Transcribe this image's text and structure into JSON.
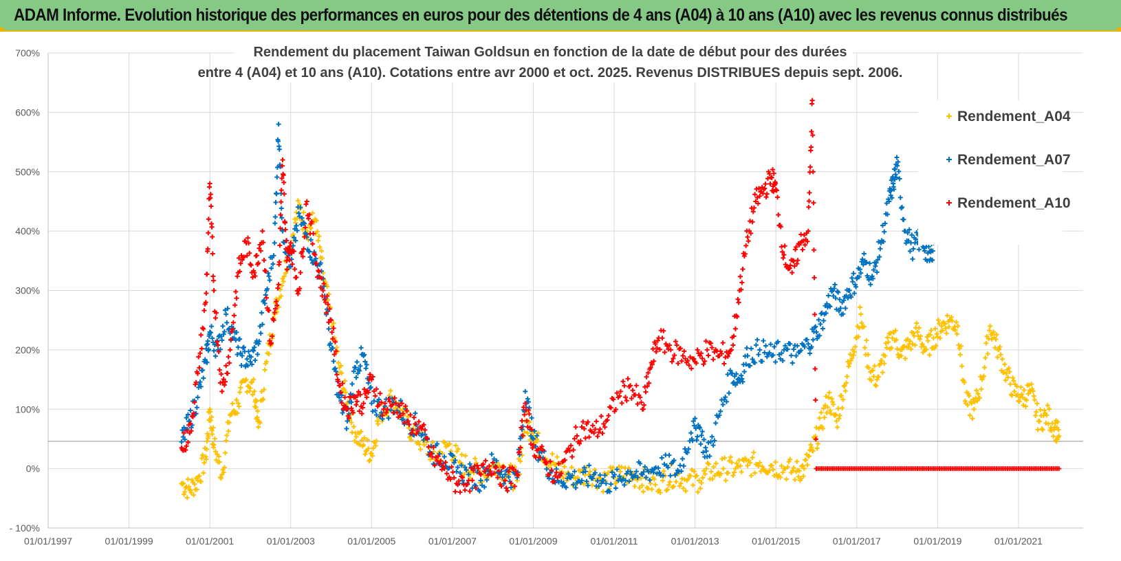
{
  "header": {
    "title": "ADAM Informe. Evolution historique des performances en euros pour des détentions de 4 ans (A04) à 10 ans (A10) avec les revenus connus distribués"
  },
  "colors": {
    "header_bg": "#86c987",
    "accent": "#e8b400",
    "A04": "#ffc000",
    "A07": "#0070c0",
    "A10": "#ff0000"
  },
  "chart_data": {
    "type": "scatter",
    "title_lines": [
      "Rendement du placement Taiwan Goldsun  en fonction de la date de début pour des durées",
      "entre 4 (A04) et 10 ans (A10). Cotations entre avr 2000 et oct. 2025. Revenus DISTRIBUES depuis sept. 2006."
    ],
    "y_ticks": [
      "700%",
      "600%",
      "500%",
      "400%",
      "300%",
      "200%",
      "100%",
      "0%",
      "- 100%"
    ],
    "y_range": [
      -100,
      700
    ],
    "x_ticks": [
      "01/01/1997",
      "01/01/1999",
      "01/01/2001",
      "01/01/2003",
      "01/01/2005",
      "01/01/2007",
      "01/01/2009",
      "01/01/2011",
      "01/01/2013",
      "01/01/2015",
      "01/01/2017",
      "01/01/2019",
      "01/01/2021"
    ],
    "x_range": [
      1997.0,
      2022.6
    ],
    "grid": "horizontal and vertical",
    "legend_position": "top-right",
    "series": [
      {
        "name": "Rendement_A04",
        "color": "#ffc000",
        "points": [
          [
            2000.3,
            -25
          ],
          [
            2000.5,
            -35
          ],
          [
            2000.7,
            -20
          ],
          [
            2000.9,
            20
          ],
          [
            2001.0,
            100
          ],
          [
            2001.1,
            40
          ],
          [
            2001.3,
            -10
          ],
          [
            2001.5,
            90
          ],
          [
            2001.7,
            110
          ],
          [
            2001.9,
            150
          ],
          [
            2002.1,
            130
          ],
          [
            2002.2,
            70
          ],
          [
            2002.4,
            180
          ],
          [
            2002.6,
            260
          ],
          [
            2002.8,
            320
          ],
          [
            2003.0,
            380
          ],
          [
            2003.2,
            440
          ],
          [
            2003.4,
            400
          ],
          [
            2003.6,
            420
          ],
          [
            2003.8,
            330
          ],
          [
            2004.0,
            250
          ],
          [
            2004.2,
            170
          ],
          [
            2004.4,
            110
          ],
          [
            2004.6,
            60
          ],
          [
            2004.8,
            40
          ],
          [
            2005.0,
            25
          ],
          [
            2005.2,
            90
          ],
          [
            2005.5,
            120
          ],
          [
            2005.8,
            90
          ],
          [
            2006.0,
            60
          ],
          [
            2006.3,
            40
          ],
          [
            2006.6,
            20
          ],
          [
            2006.9,
            40
          ],
          [
            2007.2,
            10
          ],
          [
            2007.5,
            0
          ],
          [
            2007.8,
            -10
          ],
          [
            2008.1,
            10
          ],
          [
            2008.4,
            -10
          ],
          [
            2008.6,
            -20
          ],
          [
            2008.8,
            80
          ],
          [
            2009.0,
            60
          ],
          [
            2009.2,
            30
          ],
          [
            2009.5,
            10
          ],
          [
            2009.8,
            -10
          ],
          [
            2010.1,
            -15
          ],
          [
            2010.4,
            -5
          ],
          [
            2010.7,
            -20
          ],
          [
            2011.0,
            -15
          ],
          [
            2011.3,
            -10
          ],
          [
            2011.6,
            -15
          ],
          [
            2011.9,
            -25
          ],
          [
            2012.2,
            -20
          ],
          [
            2012.5,
            -10
          ],
          [
            2012.8,
            -20
          ],
          [
            2013.1,
            -20
          ],
          [
            2013.4,
            -5
          ],
          [
            2013.7,
            0
          ],
          [
            2014.0,
            0
          ],
          [
            2014.3,
            5
          ],
          [
            2014.6,
            10
          ],
          [
            2014.9,
            5
          ],
          [
            2015.2,
            0
          ],
          [
            2015.5,
            -5
          ],
          [
            2015.7,
            0
          ],
          [
            2015.9,
            30
          ],
          [
            2016.1,
            70
          ],
          [
            2016.3,
            120
          ],
          [
            2016.5,
            80
          ],
          [
            2016.7,
            140
          ],
          [
            2016.9,
            200
          ],
          [
            2017.1,
            260
          ],
          [
            2017.3,
            170
          ],
          [
            2017.5,
            150
          ],
          [
            2017.7,
            190
          ],
          [
            2017.9,
            230
          ],
          [
            2018.1,
            190
          ],
          [
            2018.3,
            210
          ],
          [
            2018.5,
            230
          ],
          [
            2018.7,
            200
          ],
          [
            2018.9,
            220
          ],
          [
            2019.1,
            240
          ],
          [
            2019.3,
            250
          ],
          [
            2019.5,
            240
          ],
          [
            2019.7,
            110
          ],
          [
            2019.9,
            100
          ],
          [
            2020.1,
            150
          ],
          [
            2020.3,
            240
          ],
          [
            2020.5,
            200
          ],
          [
            2020.7,
            160
          ],
          [
            2020.9,
            130
          ],
          [
            2021.1,
            120
          ],
          [
            2021.3,
            130
          ],
          [
            2021.5,
            80
          ],
          [
            2021.7,
            90
          ],
          [
            2021.9,
            70
          ],
          [
            2022.0,
            55
          ]
        ]
      },
      {
        "name": "Rendement_A07",
        "color": "#0070c0",
        "points": [
          [
            2000.3,
            45
          ],
          [
            2000.5,
            80
          ],
          [
            2000.7,
            120
          ],
          [
            2000.9,
            180
          ],
          [
            2001.0,
            230
          ],
          [
            2001.2,
            200
          ],
          [
            2001.4,
            260
          ],
          [
            2001.6,
            220
          ],
          [
            2001.8,
            190
          ],
          [
            2002.0,
            180
          ],
          [
            2002.2,
            210
          ],
          [
            2002.4,
            300
          ],
          [
            2002.6,
            380
          ],
          [
            2002.7,
            580
          ],
          [
            2002.8,
            400
          ],
          [
            2003.0,
            340
          ],
          [
            2003.2,
            430
          ],
          [
            2003.4,
            390
          ],
          [
            2003.6,
            350
          ],
          [
            2003.8,
            320
          ],
          [
            2004.0,
            200
          ],
          [
            2004.2,
            120
          ],
          [
            2004.4,
            80
          ],
          [
            2004.6,
            170
          ],
          [
            2004.8,
            190
          ],
          [
            2005.0,
            110
          ],
          [
            2005.3,
            100
          ],
          [
            2005.6,
            110
          ],
          [
            2005.9,
            80
          ],
          [
            2006.2,
            70
          ],
          [
            2006.5,
            25
          ],
          [
            2006.8,
            20
          ],
          [
            2007.1,
            -5
          ],
          [
            2007.4,
            -10
          ],
          [
            2007.7,
            -20
          ],
          [
            2008.0,
            10
          ],
          [
            2008.3,
            -10
          ],
          [
            2008.6,
            -15
          ],
          [
            2008.8,
            130
          ],
          [
            2009.0,
            50
          ],
          [
            2009.3,
            10
          ],
          [
            2009.6,
            -20
          ],
          [
            2009.9,
            -15
          ],
          [
            2010.2,
            -20
          ],
          [
            2010.5,
            -10
          ],
          [
            2010.8,
            -25
          ],
          [
            2011.1,
            -20
          ],
          [
            2011.4,
            -5
          ],
          [
            2011.7,
            -10
          ],
          [
            2012.0,
            0
          ],
          [
            2012.3,
            5
          ],
          [
            2012.6,
            -5
          ],
          [
            2012.9,
            60
          ],
          [
            2013.1,
            70
          ],
          [
            2013.3,
            20
          ],
          [
            2013.6,
            90
          ],
          [
            2013.9,
            160
          ],
          [
            2014.1,
            150
          ],
          [
            2014.3,
            190
          ],
          [
            2014.6,
            200
          ],
          [
            2014.9,
            190
          ],
          [
            2015.2,
            200
          ],
          [
            2015.5,
            190
          ],
          [
            2015.8,
            210
          ],
          [
            2016.0,
            230
          ],
          [
            2016.2,
            260
          ],
          [
            2016.4,
            300
          ],
          [
            2016.6,
            270
          ],
          [
            2016.8,
            300
          ],
          [
            2017.0,
            320
          ],
          [
            2017.2,
            350
          ],
          [
            2017.4,
            320
          ],
          [
            2017.6,
            380
          ],
          [
            2017.8,
            450
          ],
          [
            2017.9,
            480
          ],
          [
            2018.0,
            510
          ],
          [
            2018.2,
            400
          ],
          [
            2018.4,
            370
          ],
          [
            2018.6,
            390
          ],
          [
            2018.8,
            350
          ],
          [
            2018.9,
            380
          ]
        ]
      },
      {
        "name": "Rendement_A10",
        "color": "#ff0000",
        "points": [
          [
            2000.3,
            35
          ],
          [
            2000.5,
            60
          ],
          [
            2000.7,
            160
          ],
          [
            2000.9,
            280
          ],
          [
            2001.0,
            480
          ],
          [
            2001.1,
            300
          ],
          [
            2001.3,
            130
          ],
          [
            2001.5,
            200
          ],
          [
            2001.7,
            330
          ],
          [
            2001.9,
            380
          ],
          [
            2002.1,
            330
          ],
          [
            2002.3,
            400
          ],
          [
            2002.5,
            210
          ],
          [
            2002.7,
            310
          ],
          [
            2002.8,
            520
          ],
          [
            2002.9,
            350
          ],
          [
            2003.0,
            380
          ],
          [
            2003.2,
            300
          ],
          [
            2003.4,
            450
          ],
          [
            2003.6,
            360
          ],
          [
            2003.8,
            300
          ],
          [
            2004.0,
            250
          ],
          [
            2004.2,
            140
          ],
          [
            2004.4,
            100
          ],
          [
            2004.6,
            120
          ],
          [
            2004.8,
            110
          ],
          [
            2005.0,
            150
          ],
          [
            2005.3,
            100
          ],
          [
            2005.6,
            110
          ],
          [
            2005.9,
            80
          ],
          [
            2006.2,
            70
          ],
          [
            2006.5,
            20
          ],
          [
            2006.8,
            0
          ],
          [
            2007.1,
            -25
          ],
          [
            2007.4,
            -20
          ],
          [
            2007.7,
            -10
          ],
          [
            2008.0,
            10
          ],
          [
            2008.3,
            -20
          ],
          [
            2008.6,
            -10
          ],
          [
            2008.8,
            110
          ],
          [
            2009.0,
            40
          ],
          [
            2009.3,
            10
          ],
          [
            2009.6,
            -15
          ],
          [
            2009.9,
            30
          ],
          [
            2010.2,
            70
          ],
          [
            2010.5,
            60
          ],
          [
            2010.8,
            80
          ],
          [
            2011.1,
            120
          ],
          [
            2011.4,
            140
          ],
          [
            2011.7,
            100
          ],
          [
            2011.9,
            170
          ],
          [
            2012.1,
            220
          ],
          [
            2012.4,
            200
          ],
          [
            2012.7,
            190
          ],
          [
            2013.0,
            180
          ],
          [
            2013.3,
            200
          ],
          [
            2013.6,
            190
          ],
          [
            2013.9,
            200
          ],
          [
            2014.1,
            300
          ],
          [
            2014.3,
            390
          ],
          [
            2014.5,
            450
          ],
          [
            2014.7,
            470
          ],
          [
            2014.9,
            490
          ],
          [
            2015.0,
            470
          ],
          [
            2015.2,
            360
          ],
          [
            2015.4,
            330
          ],
          [
            2015.6,
            380
          ],
          [
            2015.8,
            400
          ],
          [
            2015.9,
            620
          ],
          [
            2016.0,
            0
          ],
          [
            2017.0,
            0
          ],
          [
            2018.0,
            0
          ],
          [
            2019.0,
            0
          ],
          [
            2020.0,
            0
          ],
          [
            2021.0,
            0
          ],
          [
            2022.0,
            0
          ]
        ]
      }
    ]
  }
}
